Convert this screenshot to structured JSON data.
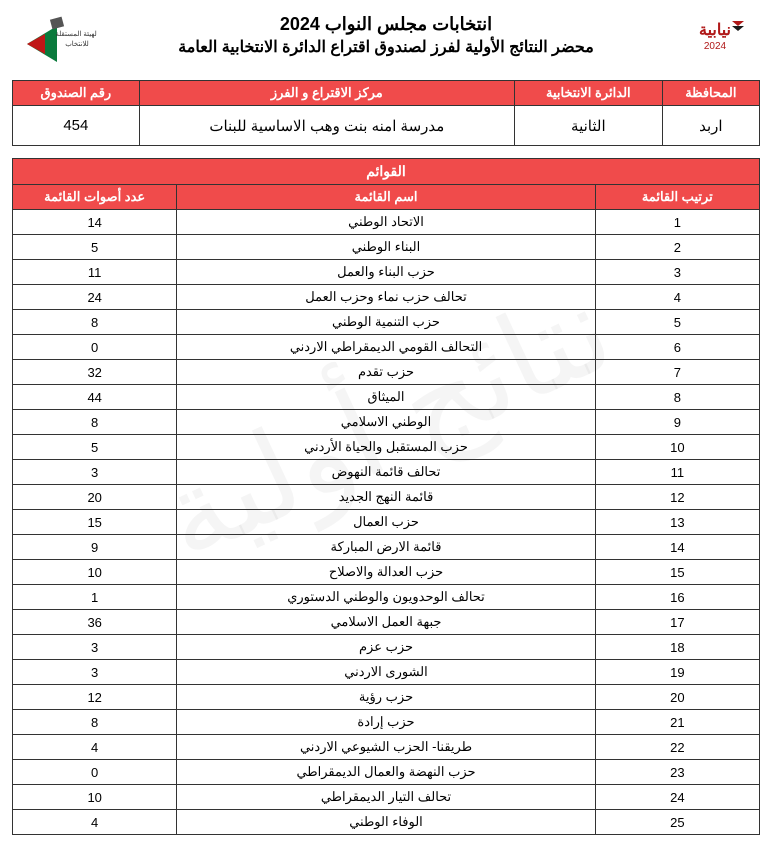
{
  "header": {
    "title1": "انتخابات مجلس النواب 2024",
    "title2": "محضر النتائج الأولية لفرز لصندوق اقتراع الدائرة الانتخابية العامة"
  },
  "info": {
    "headers": {
      "governorate": "المحافظة",
      "district": "الدائرة الانتخابية",
      "center": "مركز الاقتراع و الفرز",
      "box": "رقم الصندوق"
    },
    "values": {
      "governorate": "اربد",
      "district": "الثانية",
      "center": "مدرسة امنه بنت وهب الاساسية للبنات",
      "box": "454"
    }
  },
  "lists": {
    "title": "القوائم",
    "headers": {
      "rank": "ترتيب القائمة",
      "name": "اسم القائمة",
      "votes": "عدد أصوات القائمة"
    },
    "rows": [
      {
        "rank": "1",
        "name": "الاتحاد الوطني",
        "votes": "14"
      },
      {
        "rank": "2",
        "name": "البناء الوطني",
        "votes": "5"
      },
      {
        "rank": "3",
        "name": "حزب البناء والعمل",
        "votes": "11"
      },
      {
        "rank": "4",
        "name": "تحالف حزب نماء وحزب العمل",
        "votes": "24"
      },
      {
        "rank": "5",
        "name": "حزب التنمية الوطني",
        "votes": "8"
      },
      {
        "rank": "6",
        "name": "التحالف القومي الديمقراطي الاردني",
        "votes": "0"
      },
      {
        "rank": "7",
        "name": "حزب تقدم",
        "votes": "32"
      },
      {
        "rank": "8",
        "name": "الميثاق",
        "votes": "44"
      },
      {
        "rank": "9",
        "name": "الوطني الاسلامي",
        "votes": "8"
      },
      {
        "rank": "10",
        "name": "حزب المستقبل والحياة الأردني",
        "votes": "5"
      },
      {
        "rank": "11",
        "name": "تحالف قائمة النهوض",
        "votes": "3"
      },
      {
        "rank": "12",
        "name": "قائمة النهج الجديد",
        "votes": "20"
      },
      {
        "rank": "13",
        "name": "حزب العمال",
        "votes": "15"
      },
      {
        "rank": "14",
        "name": "قائمة الارض المباركة",
        "votes": "9"
      },
      {
        "rank": "15",
        "name": "حزب العدالة والاصلاح",
        "votes": "10"
      },
      {
        "rank": "16",
        "name": "تحالف الوحدويون والوطني الدستوري",
        "votes": "1"
      },
      {
        "rank": "17",
        "name": "جبهة العمل الاسلامي",
        "votes": "36"
      },
      {
        "rank": "18",
        "name": "حزب عزم",
        "votes": "3"
      },
      {
        "rank": "19",
        "name": "الشورى الاردني",
        "votes": "3"
      },
      {
        "rank": "20",
        "name": "حزب رؤية",
        "votes": "12"
      },
      {
        "rank": "21",
        "name": "حزب إرادة",
        "votes": "8"
      },
      {
        "rank": "22",
        "name": "طريقنا- الحزب الشيوعي الاردني",
        "votes": "4"
      },
      {
        "rank": "23",
        "name": "حزب النهضة والعمال الديمقراطي",
        "votes": "0"
      },
      {
        "rank": "24",
        "name": "تحالف التيار الديمقراطي",
        "votes": "10"
      },
      {
        "rank": "25",
        "name": "الوفاء الوطني",
        "votes": "4"
      }
    ]
  },
  "colors": {
    "header_bg": "#f04b4b",
    "header_fg": "#ffffff",
    "border": "#333333"
  }
}
